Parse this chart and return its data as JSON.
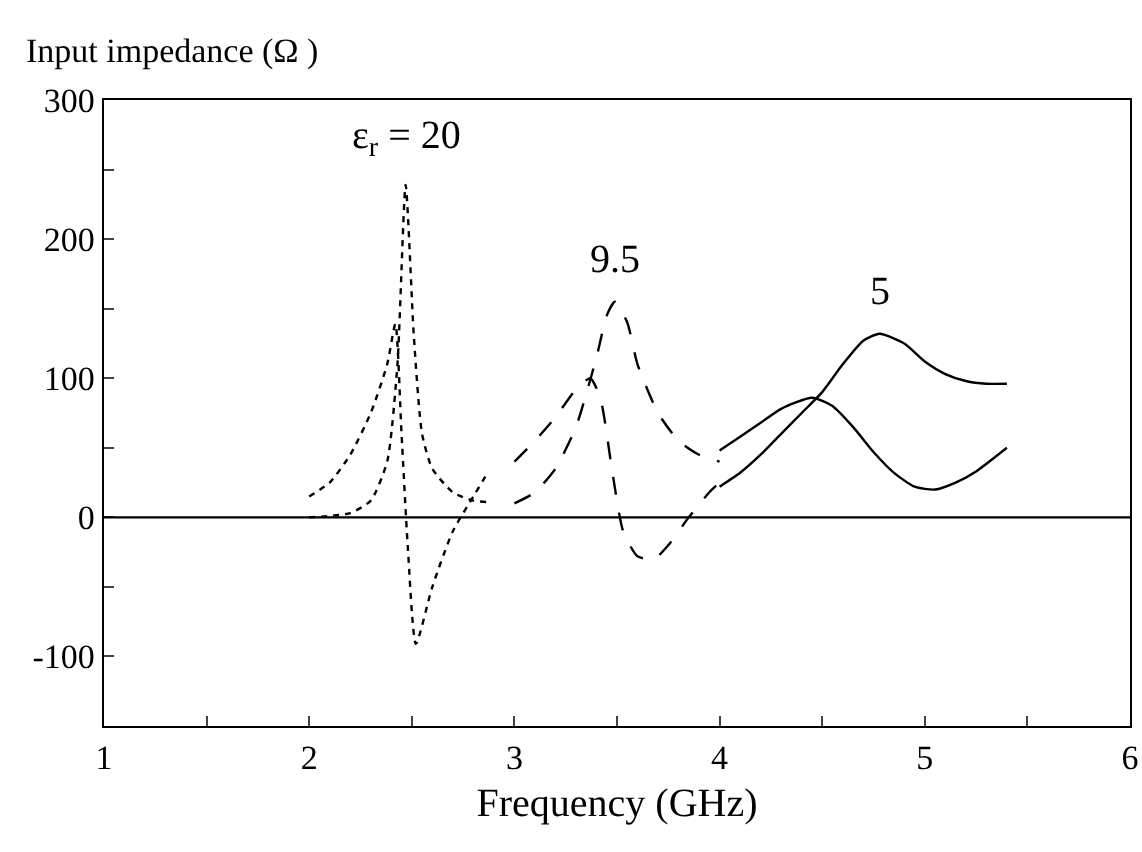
{
  "chart_data": {
    "type": "line",
    "ylabel": "Input impedance (Ω )",
    "xlabel": "Frequency (GHz)",
    "xlim": [
      1,
      6
    ],
    "xticks": [
      1,
      {
        "value": 1.5,
        "label": null
      },
      2,
      {
        "value": 2.5,
        "label": null
      },
      3,
      {
        "value": 3.5,
        "label": null
      },
      4,
      {
        "value": 4.5,
        "label": null
      },
      5,
      {
        "value": 5.5,
        "label": null
      },
      6
    ],
    "ylim": [
      -150,
      300
    ],
    "yticks": [
      -100,
      {
        "value": -50,
        "label": null
      },
      0,
      {
        "value": 50,
        "label": null
      },
      100,
      {
        "value": 150,
        "label": null
      },
      200,
      {
        "value": 250,
        "label": null
      },
      300
    ],
    "grid": false,
    "marker": "none",
    "ref_lines": [
      {
        "axis": "y",
        "value": 0,
        "color": "#000000",
        "line_style": "solid"
      }
    ],
    "annotations": [
      {
        "text": "ε$_{r}$ = 20",
        "x": 2.47,
        "y": 239
      },
      {
        "text": "9.5",
        "x": 3.49,
        "y": 155
      },
      {
        "text": "5",
        "x": 4.78,
        "y": 132
      }
    ],
    "series": [
      {
        "color": "#000000",
        "line_style": "dotted",
        "x": [
          2,
          2.1,
          2.2,
          2.3,
          2.38,
          2.43,
          2.47,
          2.51,
          2.55,
          2.6,
          2.7,
          2.8,
          2.87
        ],
        "values": [
          0,
          1,
          3,
          12,
          40,
          110,
          239,
          130,
          60,
          35,
          18,
          12,
          11
        ]
      },
      {
        "color": "#000000",
        "line_style": "dotted",
        "x": [
          2,
          2.1,
          2.2,
          2.3,
          2.38,
          2.42,
          2.45,
          2.48,
          2.52,
          2.6,
          2.7,
          2.8,
          2.87
        ],
        "values": [
          15,
          25,
          45,
          75,
          110,
          139,
          60,
          -20,
          -91,
          -50,
          -10,
          15,
          32
        ]
      },
      {
        "color": "#000000",
        "line_style": "dashed",
        "x": [
          3,
          3.1,
          3.2,
          3.3,
          3.4,
          3.45,
          3.49,
          3.55,
          3.6,
          3.7,
          3.8,
          3.9,
          4
        ],
        "values": [
          10,
          18,
          35,
          65,
          115,
          145,
          155,
          140,
          110,
          75,
          55,
          45,
          40
        ]
      },
      {
        "color": "#000000",
        "line_style": "dashed",
        "x": [
          3,
          3.1,
          3.2,
          3.3,
          3.37,
          3.42,
          3.48,
          3.53,
          3.6,
          3.68,
          3.75,
          3.85,
          3.95,
          4
        ],
        "values": [
          40,
          55,
          72,
          92,
          100,
          85,
          30,
          -10,
          -28,
          -30,
          -20,
          0,
          18,
          25
        ]
      },
      {
        "color": "#000000",
        "line_style": "solid",
        "x": [
          4,
          4.1,
          4.2,
          4.3,
          4.4,
          4.5,
          4.6,
          4.7,
          4.78,
          4.9,
          5,
          5.1,
          5.2,
          5.3,
          5.4
        ],
        "values": [
          22,
          32,
          45,
          60,
          75,
          90,
          110,
          127,
          132,
          125,
          112,
          103,
          98,
          96,
          96
        ]
      },
      {
        "color": "#000000",
        "line_style": "solid",
        "x": [
          4,
          4.1,
          4.2,
          4.3,
          4.45,
          4.55,
          4.65,
          4.75,
          4.85,
          4.95,
          5.05,
          5.15,
          5.25,
          5.4
        ],
        "values": [
          48,
          58,
          68,
          78,
          86,
          80,
          65,
          47,
          32,
          22,
          20,
          25,
          33,
          50
        ]
      }
    ]
  }
}
